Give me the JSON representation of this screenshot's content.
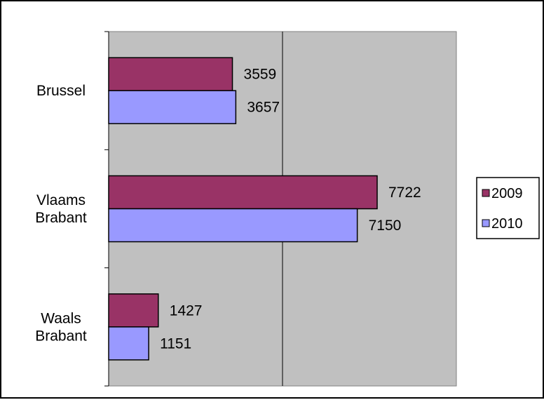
{
  "chart_data": {
    "type": "bar",
    "orientation": "horizontal",
    "categories": [
      [
        "Brussel"
      ],
      [
        "Vlaams",
        "Brabant"
      ],
      [
        "Waals",
        "Brabant"
      ]
    ],
    "series": [
      {
        "name": "2009",
        "values": [
          3559,
          7722,
          1427
        ],
        "color": "#993366"
      },
      {
        "name": "2010",
        "values": [
          3657,
          7150,
          1151
        ],
        "color": "#9999ff"
      }
    ],
    "value_labels": [
      [
        "3559",
        "7722",
        "1427"
      ],
      [
        "3657",
        "7150",
        "1151"
      ]
    ],
    "xlim": [
      0,
      10000
    ],
    "major_unit": 5000,
    "plot_background": "#c0c0c0",
    "grid": true,
    "legend_position": "right",
    "tick_labels_visible": false
  }
}
